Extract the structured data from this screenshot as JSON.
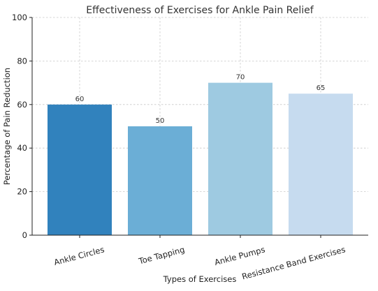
{
  "chart_data": {
    "type": "bar",
    "title": "Effectiveness of Exercises for Ankle Pain Relief",
    "xlabel": "Types of Exercises",
    "ylabel": "Percentage of Pain Reduction",
    "categories": [
      "Ankle Circles",
      "Toe Tapping",
      "Ankle Pumps",
      "Resistance Band Exercises"
    ],
    "values": [
      60,
      50,
      70,
      65
    ],
    "value_labels": [
      "60",
      "50",
      "70",
      "65"
    ],
    "colors": [
      "#3182bd",
      "#6baed6",
      "#9ecae1",
      "#c6dbef"
    ],
    "ylim": [
      0,
      100
    ],
    "yticks": [
      0,
      20,
      40,
      60,
      80,
      100
    ],
    "ytick_labels": [
      "0",
      "20",
      "40",
      "60",
      "80",
      "100"
    ],
    "grid": true,
    "legend": "none"
  }
}
